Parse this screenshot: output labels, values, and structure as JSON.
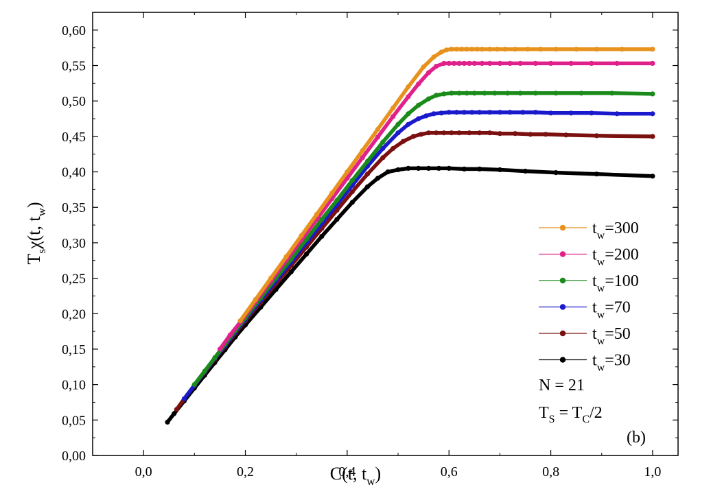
{
  "chart_data": {
    "type": "scatter",
    "title": "",
    "xlabel": "C(t, t_w)",
    "ylabel": "T_s χ(t, t_w)",
    "xlim": [
      -0.1,
      1.05
    ],
    "ylim": [
      0.0,
      0.625
    ],
    "x_ticks": [
      0.0,
      0.2,
      0.4,
      0.6,
      0.8,
      1.0
    ],
    "x_tick_labels": [
      "0,0",
      "0,2",
      "0,4",
      "0,6",
      "0,8",
      "1,0"
    ],
    "y_ticks": [
      0.0,
      0.05,
      0.1,
      0.15,
      0.2,
      0.25,
      0.3,
      0.35,
      0.4,
      0.45,
      0.5,
      0.55,
      0.6
    ],
    "y_tick_labels": [
      "0,00",
      "0,05",
      "0,10",
      "0,15",
      "0,20",
      "0,25",
      "0,30",
      "0,35",
      "0,40",
      "0,45",
      "0,50",
      "0,55",
      "0,60"
    ],
    "grid": false,
    "legend_position": "right",
    "series": [
      {
        "name": "t_w=300",
        "tw": "300",
        "color": "#e8921e",
        "x": [
          0.19,
          0.22,
          0.25,
          0.28,
          0.31,
          0.34,
          0.37,
          0.4,
          0.43,
          0.46,
          0.49,
          0.52,
          0.55,
          0.57,
          0.585,
          0.595,
          0.605,
          0.615,
          0.625,
          0.635,
          0.645,
          0.655,
          0.665,
          0.68,
          0.695,
          0.71,
          0.73,
          0.755,
          0.78,
          0.81,
          0.85,
          0.89,
          0.94,
          1.0
        ],
        "y": [
          0.19,
          0.22,
          0.25,
          0.28,
          0.31,
          0.34,
          0.37,
          0.4,
          0.43,
          0.46,
          0.49,
          0.52,
          0.548,
          0.562,
          0.569,
          0.572,
          0.573,
          0.573,
          0.573,
          0.573,
          0.573,
          0.573,
          0.573,
          0.573,
          0.573,
          0.573,
          0.573,
          0.573,
          0.573,
          0.573,
          0.573,
          0.573,
          0.573,
          0.573
        ]
      },
      {
        "name": "t_w=200",
        "tw": "200",
        "color": "#e0218a",
        "x": [
          0.15,
          0.17,
          0.19,
          0.22,
          0.25,
          0.28,
          0.31,
          0.34,
          0.37,
          0.4,
          0.43,
          0.46,
          0.49,
          0.52,
          0.54,
          0.56,
          0.575,
          0.59,
          0.6,
          0.61,
          0.62,
          0.63,
          0.64,
          0.65,
          0.665,
          0.68,
          0.7,
          0.72,
          0.74,
          0.77,
          0.8,
          0.84,
          0.88,
          0.93,
          1.0
        ],
        "y": [
          0.15,
          0.17,
          0.188,
          0.217,
          0.246,
          0.275,
          0.304,
          0.333,
          0.362,
          0.391,
          0.42,
          0.449,
          0.478,
          0.506,
          0.524,
          0.54,
          0.549,
          0.553,
          0.553,
          0.553,
          0.553,
          0.553,
          0.553,
          0.553,
          0.553,
          0.553,
          0.553,
          0.553,
          0.553,
          0.553,
          0.553,
          0.553,
          0.553,
          0.553,
          0.553
        ]
      },
      {
        "name": "t_w=100",
        "tw": "100",
        "color": "#1a8a1a",
        "x": [
          0.1,
          0.12,
          0.14,
          0.16,
          0.18,
          0.2,
          0.23,
          0.26,
          0.29,
          0.32,
          0.35,
          0.38,
          0.41,
          0.44,
          0.47,
          0.5,
          0.52,
          0.54,
          0.56,
          0.575,
          0.59,
          0.605,
          0.62,
          0.635,
          0.65,
          0.67,
          0.69,
          0.715,
          0.74,
          0.77,
          0.81,
          0.86,
          0.92,
          1.0
        ],
        "y": [
          0.1,
          0.119,
          0.138,
          0.157,
          0.176,
          0.194,
          0.222,
          0.25,
          0.277,
          0.305,
          0.333,
          0.36,
          0.388,
          0.415,
          0.442,
          0.467,
          0.482,
          0.494,
          0.503,
          0.508,
          0.51,
          0.511,
          0.511,
          0.511,
          0.511,
          0.511,
          0.511,
          0.511,
          0.511,
          0.511,
          0.511,
          0.511,
          0.511,
          0.51
        ]
      },
      {
        "name": "t_w=70",
        "tw": "70",
        "color": "#1a1acc",
        "x": [
          0.08,
          0.1,
          0.12,
          0.14,
          0.16,
          0.18,
          0.2,
          0.23,
          0.26,
          0.29,
          0.32,
          0.35,
          0.38,
          0.41,
          0.44,
          0.47,
          0.5,
          0.52,
          0.54,
          0.555,
          0.57,
          0.585,
          0.6,
          0.615,
          0.63,
          0.645,
          0.66,
          0.68,
          0.7,
          0.72,
          0.745,
          0.77,
          0.8,
          0.84,
          0.88,
          0.93,
          1.0
        ],
        "y": [
          0.08,
          0.099,
          0.118,
          0.137,
          0.155,
          0.174,
          0.192,
          0.219,
          0.246,
          0.273,
          0.3,
          0.327,
          0.354,
          0.381,
          0.408,
          0.433,
          0.455,
          0.467,
          0.475,
          0.479,
          0.482,
          0.483,
          0.484,
          0.484,
          0.484,
          0.484,
          0.484,
          0.484,
          0.484,
          0.484,
          0.484,
          0.484,
          0.483,
          0.483,
          0.483,
          0.482,
          0.482
        ]
      },
      {
        "name": "t_w=50",
        "tw": "50",
        "color": "#7a1010",
        "x": [
          0.065,
          0.08,
          0.1,
          0.12,
          0.14,
          0.16,
          0.18,
          0.2,
          0.23,
          0.26,
          0.29,
          0.32,
          0.35,
          0.38,
          0.41,
          0.44,
          0.47,
          0.49,
          0.51,
          0.53,
          0.545,
          0.56,
          0.575,
          0.59,
          0.605,
          0.62,
          0.64,
          0.66,
          0.68,
          0.7,
          0.73,
          0.76,
          0.79,
          0.83,
          0.89,
          1.0
        ],
        "y": [
          0.065,
          0.08,
          0.099,
          0.117,
          0.136,
          0.154,
          0.172,
          0.19,
          0.216,
          0.242,
          0.268,
          0.294,
          0.32,
          0.346,
          0.372,
          0.397,
          0.42,
          0.433,
          0.443,
          0.45,
          0.453,
          0.455,
          0.455,
          0.455,
          0.455,
          0.455,
          0.455,
          0.455,
          0.455,
          0.454,
          0.454,
          0.453,
          0.453,
          0.452,
          0.451,
          0.45
        ]
      },
      {
        "name": "t_w=30",
        "tw": "30",
        "color": "#000000",
        "x": [
          0.047,
          0.06,
          0.08,
          0.1,
          0.12,
          0.14,
          0.16,
          0.18,
          0.2,
          0.23,
          0.26,
          0.29,
          0.32,
          0.35,
          0.38,
          0.41,
          0.44,
          0.46,
          0.48,
          0.5,
          0.52,
          0.54,
          0.56,
          0.58,
          0.6,
          0.63,
          0.66,
          0.7,
          0.75,
          0.81,
          0.89,
          1.0
        ],
        "y": [
          0.047,
          0.059,
          0.077,
          0.095,
          0.113,
          0.131,
          0.149,
          0.167,
          0.184,
          0.209,
          0.234,
          0.259,
          0.284,
          0.309,
          0.333,
          0.357,
          0.379,
          0.391,
          0.4,
          0.403,
          0.405,
          0.405,
          0.405,
          0.405,
          0.405,
          0.404,
          0.404,
          0.403,
          0.401,
          0.399,
          0.397,
          0.394
        ]
      }
    ],
    "annotations": {
      "n_label": "N = 21",
      "ts_label": "T_S = T_C/2",
      "panel_label": "(b)"
    }
  }
}
